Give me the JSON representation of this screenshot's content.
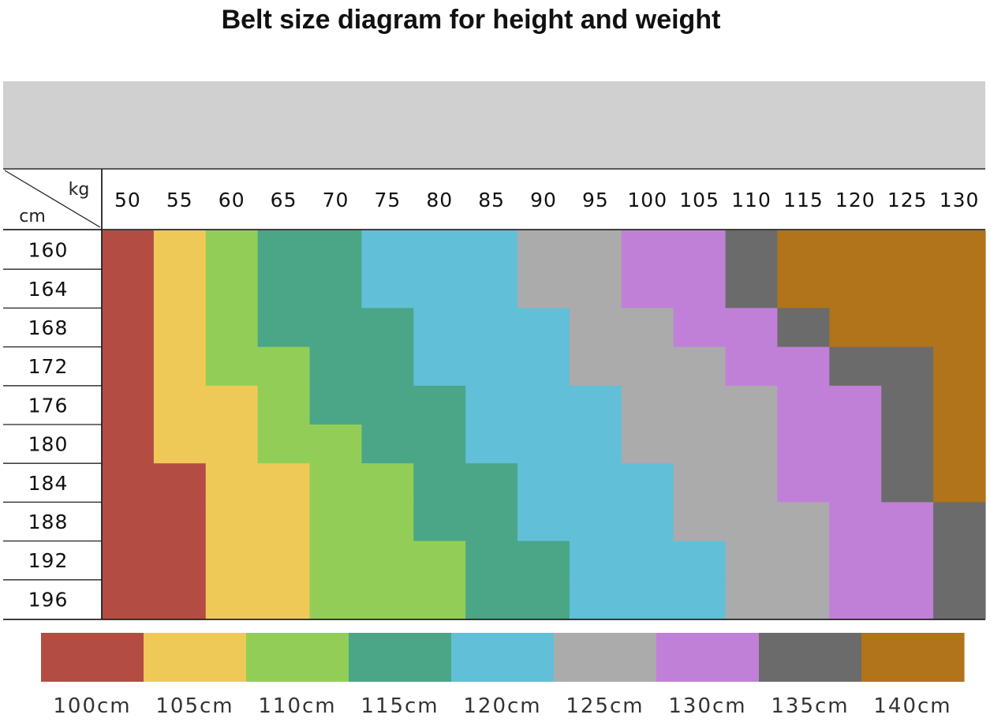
{
  "chart_data": {
    "type": "heatmap",
    "title": "Belt size diagram for height and weight",
    "x_unit": "kg",
    "y_unit": "cm",
    "columns": [
      "50",
      "55",
      "60",
      "65",
      "70",
      "75",
      "80",
      "85",
      "90",
      "95",
      "100",
      "105",
      "110",
      "115",
      "120",
      "125",
      "130"
    ],
    "rows": [
      "160",
      "164",
      "168",
      "172",
      "176",
      "180",
      "184",
      "188",
      "192",
      "196"
    ],
    "sizes": [
      {
        "label": "100cm",
        "color": "#b34c43"
      },
      {
        "label": "105cm",
        "color": "#efc957"
      },
      {
        "label": "110cm",
        "color": "#92ce57"
      },
      {
        "label": "115cm",
        "color": "#4aa687"
      },
      {
        "label": "120cm",
        "color": "#62bfd8"
      },
      {
        "label": "125cm",
        "color": "#ababab"
      },
      {
        "label": "130cm",
        "color": "#c080d8"
      },
      {
        "label": "135cm",
        "color": "#6b6b6b"
      },
      {
        "label": "140cm",
        "color": "#b1741a"
      }
    ],
    "matrix": [
      [
        0,
        1,
        2,
        3,
        3,
        4,
        4,
        4,
        5,
        5,
        6,
        6,
        7,
        8,
        8,
        8,
        8
      ],
      [
        0,
        1,
        2,
        3,
        3,
        4,
        4,
        4,
        5,
        5,
        6,
        6,
        7,
        8,
        8,
        8,
        8
      ],
      [
        0,
        1,
        2,
        3,
        3,
        3,
        4,
        4,
        4,
        5,
        5,
        6,
        6,
        7,
        8,
        8,
        8
      ],
      [
        0,
        1,
        2,
        2,
        3,
        3,
        4,
        4,
        4,
        5,
        5,
        5,
        6,
        6,
        7,
        7,
        8
      ],
      [
        0,
        1,
        1,
        2,
        3,
        3,
        3,
        4,
        4,
        4,
        5,
        5,
        5,
        6,
        6,
        7,
        8
      ],
      [
        0,
        1,
        1,
        2,
        2,
        3,
        3,
        4,
        4,
        4,
        5,
        5,
        5,
        6,
        6,
        7,
        8
      ],
      [
        0,
        0,
        1,
        1,
        2,
        2,
        3,
        3,
        4,
        4,
        4,
        5,
        5,
        6,
        6,
        7,
        8
      ],
      [
        0,
        0,
        1,
        1,
        2,
        2,
        3,
        3,
        4,
        4,
        4,
        5,
        5,
        5,
        6,
        6,
        7
      ],
      [
        0,
        0,
        1,
        1,
        2,
        2,
        2,
        3,
        3,
        4,
        4,
        4,
        5,
        5,
        6,
        6,
        7
      ],
      [
        0,
        0,
        1,
        1,
        2,
        2,
        2,
        3,
        3,
        4,
        4,
        4,
        5,
        5,
        6,
        6,
        7
      ]
    ]
  }
}
